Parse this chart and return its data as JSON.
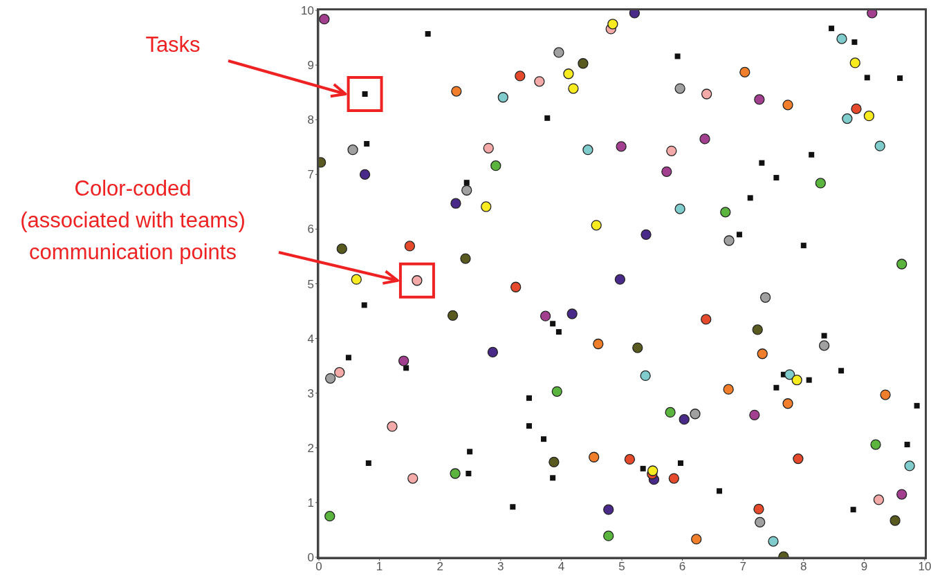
{
  "chart_data": {
    "type": "scatter",
    "xlim": [
      0,
      10
    ],
    "ylim": [
      0,
      10
    ],
    "xticks": [
      0,
      1,
      2,
      3,
      4,
      5,
      6,
      7,
      8,
      9,
      10
    ],
    "yticks": [
      0,
      1,
      2,
      3,
      4,
      5,
      6,
      7,
      8,
      9,
      10
    ],
    "grid": false,
    "legend": false,
    "annotations": [
      "Tasks",
      "Color-coded\n(associated with teams)\ncommunication points"
    ],
    "series": [
      {
        "color": "#111111",
        "marker": "square",
        "x": [
          1.8,
          0.76,
          0.79,
          3.77,
          2.44,
          0.75,
          3.86,
          3.96,
          0.49,
          1.44,
          3.47,
          3.47,
          3.71,
          2.49,
          0.82,
          2.47,
          3.86,
          3.2,
          8.46,
          8.84,
          5.92,
          9.05,
          9.59,
          8.13,
          7.31,
          7.55,
          7.12,
          6.94,
          8.0,
          8.34,
          8.62,
          7.67,
          8.09,
          7.55,
          9.87,
          9.71,
          5.97,
          5.35,
          6.61,
          8.82
        ],
        "values": [
          9.57,
          8.47,
          7.56,
          8.03,
          6.85,
          4.61,
          4.27,
          4.12,
          3.65,
          3.46,
          2.91,
          2.4,
          2.16,
          1.93,
          1.72,
          1.53,
          1.45,
          0.92,
          9.67,
          9.42,
          9.16,
          8.77,
          8.76,
          7.36,
          7.21,
          6.94,
          6.57,
          5.9,
          5.7,
          4.05,
          3.41,
          3.34,
          3.24,
          3.1,
          2.77,
          2.06,
          1.72,
          1.62,
          1.21,
          0.87
        ]
      },
      {
        "color": "#a2408f",
        "marker": "circle",
        "x": [
          0.09,
          9.13,
          7.27,
          4.99,
          6.37,
          5.74,
          3.74,
          1.4,
          7.19,
          9.62
        ],
        "values": [
          9.84,
          9.95,
          8.37,
          7.51,
          7.65,
          7.05,
          4.41,
          3.59,
          2.6,
          1.15
        ]
      },
      {
        "color": "#4a2a88",
        "marker": "circle",
        "x": [
          5.21,
          0.76,
          2.26,
          5.4,
          4.97,
          4.18,
          2.87,
          6.03,
          5.53,
          4.78
        ],
        "values": [
          9.95,
          7.0,
          6.47,
          5.9,
          5.08,
          4.45,
          3.75,
          2.52,
          1.42,
          0.87
        ]
      },
      {
        "color": "#a0a0a0",
        "marker": "circle",
        "x": [
          3.96,
          5.96,
          0.56,
          2.44,
          6.77,
          7.37,
          8.34,
          0.19,
          6.21,
          7.28
        ],
        "values": [
          9.23,
          8.57,
          7.45,
          6.71,
          5.79,
          4.75,
          3.87,
          3.27,
          2.62,
          0.64
        ]
      },
      {
        "color": "#585a1f",
        "marker": "circle",
        "x": [
          0.03,
          4.36,
          0.38,
          2.42,
          2.21,
          7.24,
          5.26,
          3.88,
          9.51,
          7.67
        ],
        "values": [
          7.22,
          9.03,
          5.64,
          5.46,
          4.42,
          4.16,
          3.83,
          1.74,
          0.67,
          0.01
        ]
      },
      {
        "color": "#f4aaa8",
        "marker": "circle",
        "x": [
          4.82,
          3.64,
          6.4,
          2.8,
          5.82,
          1.62,
          0.34,
          1.21,
          1.55,
          9.24
        ],
        "values": [
          9.66,
          8.7,
          8.47,
          7.48,
          7.43,
          5.06,
          3.38,
          2.39,
          1.44,
          1.05
        ]
      },
      {
        "color": "#e64a2c",
        "marker": "circle",
        "x": [
          3.32,
          8.87,
          1.5,
          3.25,
          6.39,
          5.13,
          5.86,
          7.91,
          7.26,
          5.5
        ],
        "values": [
          8.8,
          8.2,
          5.69,
          4.94,
          4.35,
          1.79,
          1.44,
          1.8,
          0.88,
          1.52
        ]
      },
      {
        "color": "#f07e2a",
        "marker": "circle",
        "x": [
          2.27,
          7.03,
          7.74,
          4.61,
          7.32,
          6.76,
          7.74,
          9.35,
          4.54,
          6.23
        ],
        "values": [
          8.52,
          8.87,
          8.27,
          3.9,
          3.72,
          3.07,
          2.81,
          2.97,
          1.83,
          0.33
        ]
      },
      {
        "color": "#80cccc",
        "marker": "circle",
        "x": [
          3.04,
          4.44,
          8.63,
          8.72,
          9.26,
          5.96,
          5.39,
          7.77,
          7.5,
          9.75
        ],
        "values": [
          8.41,
          7.45,
          9.48,
          8.02,
          7.52,
          6.37,
          3.32,
          3.34,
          0.29,
          1.67
        ]
      },
      {
        "color": "#5ab43e",
        "marker": "circle",
        "x": [
          2.92,
          6.71,
          8.28,
          9.62,
          3.93,
          5.8,
          2.25,
          9.19,
          0.18,
          4.78
        ],
        "values": [
          7.16,
          6.31,
          6.84,
          5.36,
          3.03,
          2.65,
          1.53,
          2.06,
          0.75,
          0.39
        ]
      },
      {
        "color": "#f8ec20",
        "marker": "circle",
        "x": [
          4.85,
          4.12,
          4.2,
          8.85,
          9.08,
          4.58,
          2.76,
          0.62,
          7.89,
          5.51
        ],
        "values": [
          9.75,
          8.84,
          8.57,
          9.04,
          8.07,
          6.07,
          6.41,
          5.08,
          3.24,
          1.58
        ]
      }
    ]
  }
}
